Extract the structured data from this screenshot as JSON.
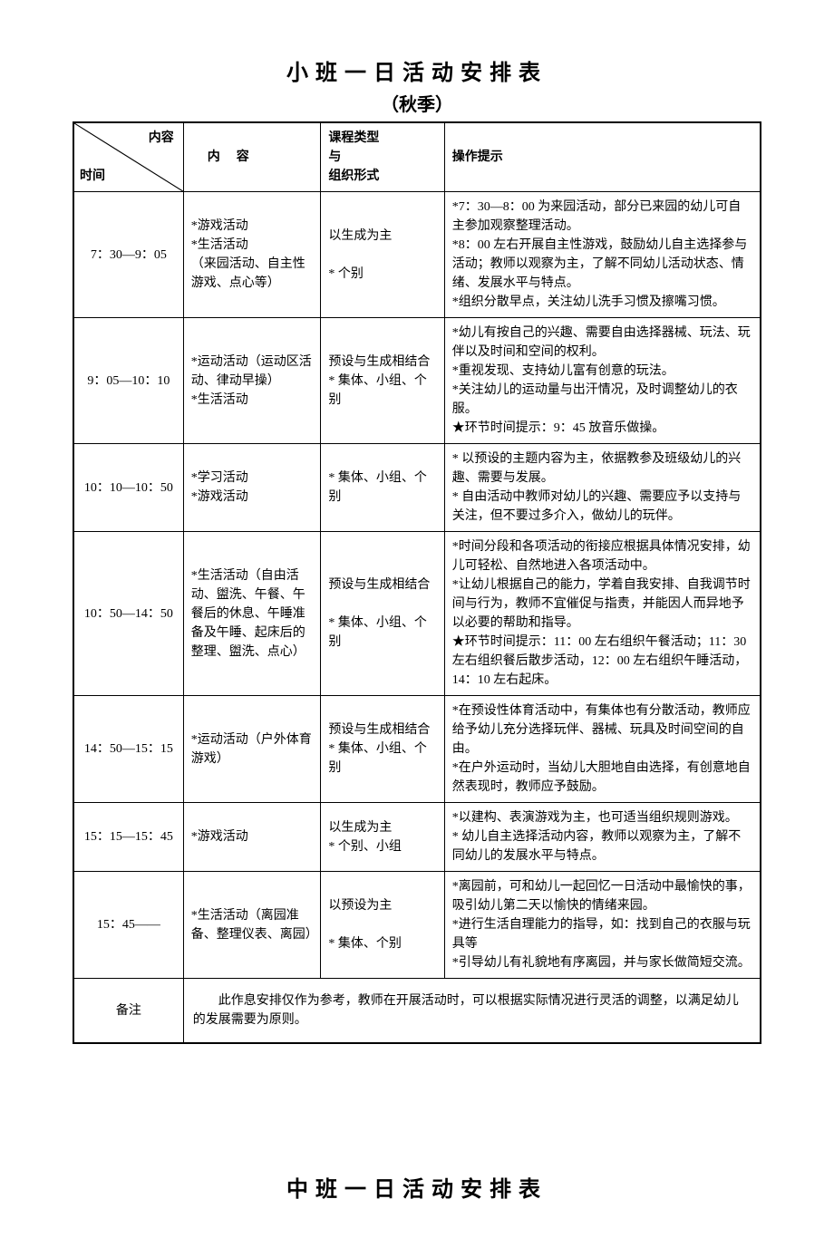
{
  "title": "小班一日活动安排表",
  "subtitle": "（秋季）",
  "header": {
    "diag_top": "内容",
    "diag_bottom": "时间",
    "col2": "内容",
    "col3_line1": "课程类型",
    "col3_line2": "与",
    "col3_line3": "组织形式",
    "col4": "操作提示"
  },
  "rows": [
    {
      "time": "7：30—9：05",
      "content": "*游戏活动\n*生活活动\n（来园活动、自主性游戏、点心等）",
      "type": "以生成为主\n\n* 个别",
      "tips": "*7：30—8：00 为来园活动，部分已来园的幼儿可自主参加观察整理活动。\n*8：00 左右开展自主性游戏，鼓励幼儿自主选择参与活动；教师以观察为主，了解不同幼儿活动状态、情绪、发展水平与特点。\n*组织分散早点，关注幼儿洗手习惯及擦嘴习惯。"
    },
    {
      "time": "9：05—10：10",
      "content": "*运动活动（运动区活动、律动早操）\n*生活活动",
      "type": "预设与生成相结合\n* 集体、小组、个别",
      "tips": "*幼儿有按自己的兴趣、需要自由选择器械、玩法、玩伴以及时间和空间的权利。\n*重视发现、支持幼儿富有创意的玩法。\n*关注幼儿的运动量与出汗情况，及时调整幼儿的衣服。\n★环节时间提示：9：45 放音乐做操。"
    },
    {
      "time": "10：10—10：50",
      "content": "*学习活动\n*游戏活动",
      "type": "* 集体、小组、个别",
      "tips": "* 以预设的主题内容为主，依据教参及班级幼儿的兴趣、需要与发展。\n* 自由活动中教师对幼儿的兴趣、需要应予以支持与关注，但不要过多介入，做幼儿的玩伴。"
    },
    {
      "time": "10：50—14：50",
      "content": "*生活活动（自由活动、盥洗、午餐、午餐后的休息、午睡准备及午睡、起床后的整理、盥洗、点心）",
      "type": "预设与生成相结合\n\n* 集体、小组、个别",
      "tips": "*时间分段和各项活动的衔接应根据具体情况安排，幼儿可轻松、自然地进入各项活动中。\n*让幼儿根据自己的能力，学着自我安排、自我调节时间与行为，教师不宜催促与指责，并能因人而异地予以必要的帮助和指导。\n★环节时间提示：11：00 左右组织午餐活动；11：30 左右组织餐后散步活动，12：00 左右组织午睡活动，14：10 左右起床。"
    },
    {
      "time": "14：50—15：15",
      "content": "*运动活动（户外体育游戏）",
      "type": "预设与生成相结合\n* 集体、小组、个别",
      "tips": "*在预设性体育活动中，有集体也有分散活动，教师应给予幼儿充分选择玩伴、器械、玩具及时间空间的自由。\n*在户外运动时，当幼儿大胆地自由选择，有创意地自然表现时，教师应予鼓励。"
    },
    {
      "time": "15：15—15：45",
      "content": "*游戏活动",
      "type": "以生成为主\n* 个别、小组",
      "tips": "*以建构、表演游戏为主，也可适当组织规则游戏。\n* 幼儿自主选择活动内容，教师以观察为主，了解不同幼儿的发展水平与特点。"
    },
    {
      "time": "15：45——",
      "content": "*生活活动（离园准备、整理仪表、离园）",
      "type": "以预设为主\n\n* 集体、个别",
      "tips": "*离园前，可和幼儿一起回忆一日活动中最愉快的事，吸引幼儿第二天以愉快的情绪来园。\n*进行生活自理能力的指导，如：找到自己的衣服与玩具等\n*引导幼儿有礼貌地有序离园，并与家长做简短交流。"
    }
  ],
  "note_label": "备注",
  "note_text": "此作息安排仅作为参考，教师在开展活动时，可以根据实际情况进行灵活的调整，以满足幼儿的发展需要为原则。",
  "second_title": "中班一日活动安排表"
}
